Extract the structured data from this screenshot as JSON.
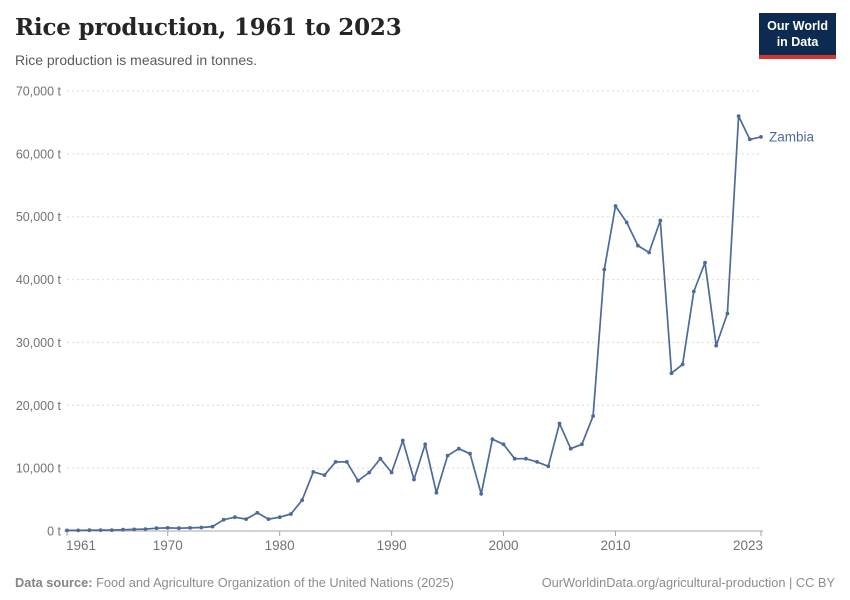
{
  "header": {
    "title": "Rice production, 1961 to 2023",
    "subtitle": "Rice production is measured in tonnes.",
    "logo": {
      "line1": "Our World",
      "line2": "in Data",
      "bg_color": "#0d2a51",
      "stripe_color": "#d7352b"
    }
  },
  "chart_data": {
    "type": "line",
    "title": "Rice production, 1961 to 2023",
    "ylabel": "tonnes",
    "unit": " t",
    "xlim": [
      1961,
      2023
    ],
    "ylim": [
      0,
      70000
    ],
    "grid": "horizontal-dashed",
    "legend_position": "end-of-line",
    "x_ticks": [
      1961,
      1970,
      1980,
      1990,
      2000,
      2010,
      2023
    ],
    "y_ticks": [
      0,
      10000,
      20000,
      30000,
      40000,
      50000,
      60000,
      70000
    ],
    "series": [
      {
        "name": "Zambia",
        "color": "#4c6a9c",
        "years": [
          1961,
          1962,
          1963,
          1964,
          1965,
          1966,
          1967,
          1968,
          1969,
          1970,
          1971,
          1972,
          1973,
          1974,
          1975,
          1976,
          1977,
          1978,
          1979,
          1980,
          1981,
          1982,
          1983,
          1984,
          1985,
          1986,
          1987,
          1988,
          1989,
          1990,
          1991,
          1992,
          1993,
          1994,
          1995,
          1996,
          1997,
          1998,
          1999,
          2000,
          2001,
          2002,
          2003,
          2004,
          2005,
          2006,
          2007,
          2008,
          2009,
          2010,
          2011,
          2012,
          2013,
          2014,
          2015,
          2016,
          2017,
          2018,
          2019,
          2020,
          2021,
          2022,
          2023
        ],
        "values": [
          100,
          100,
          120,
          150,
          150,
          200,
          250,
          300,
          450,
          500,
          450,
          500,
          550,
          700,
          1800,
          2200,
          1900,
          2900,
          1900,
          2200,
          2700,
          4900,
          9400,
          8900,
          11000,
          11000,
          8000,
          9300,
          11500,
          9300,
          14400,
          8200,
          13800,
          6100,
          12000,
          13100,
          12300,
          5900,
          14600,
          13800,
          11500,
          11500,
          11000,
          10300,
          17100,
          13100,
          13800,
          18300,
          41600,
          51700,
          49100,
          45400,
          44300,
          49400,
          25100,
          26500,
          38100,
          42700,
          29500,
          34600,
          66000,
          62300,
          62700
        ]
      }
    ],
    "style": {
      "grid_color": "#d9d9d9",
      "axis_color": "#a5a5a5",
      "tick_label_color": "#737373",
      "line_color": "#4c6a9c"
    }
  },
  "footer": {
    "datasource_label": "Data source:",
    "datasource_text": " Food and Agriculture Organization of the United Nations (2025)",
    "credit": "OurWorldinData.org/agricultural-production | CC BY"
  }
}
